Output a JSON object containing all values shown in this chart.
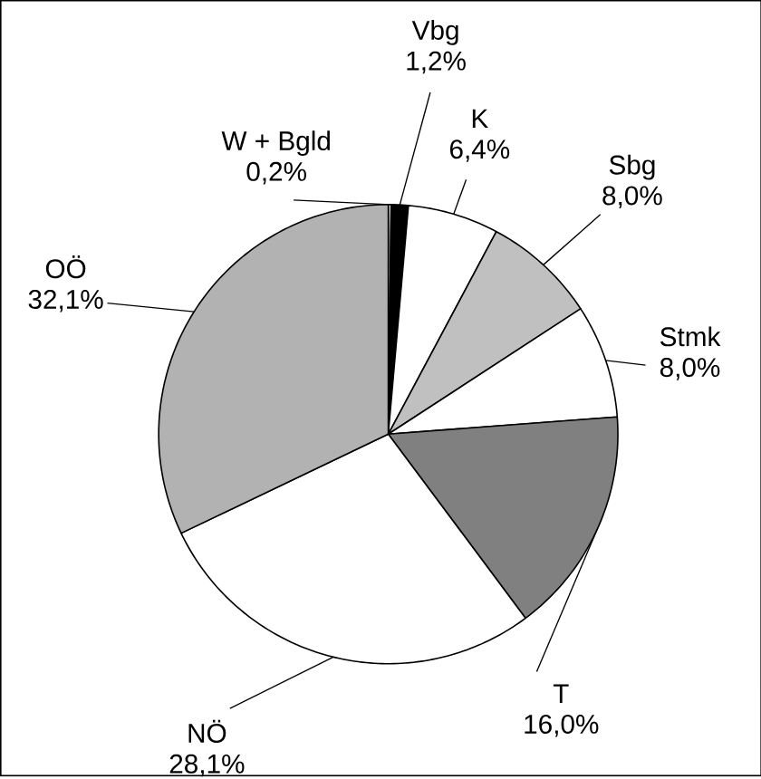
{
  "chart_data": {
    "type": "pie",
    "categories": [
      "W + Bgld",
      "Vbg",
      "K",
      "Sbg",
      "Stmk",
      "T",
      "NÖ",
      "OÖ"
    ],
    "values": [
      0.2,
      1.2,
      6.4,
      8.0,
      8.0,
      16.0,
      28.1,
      32.1
    ],
    "value_labels": [
      "0,2%",
      "1,2%",
      "6,4%",
      "8,0%",
      "8,0%",
      "16,0%",
      "28,1%",
      "32,1%"
    ],
    "colors": [
      "#ffffff",
      "#000000",
      "#ffffff",
      "#c0c0c0",
      "#ffffff",
      "#808080",
      "#ffffff",
      "#b2b2b2"
    ]
  }
}
